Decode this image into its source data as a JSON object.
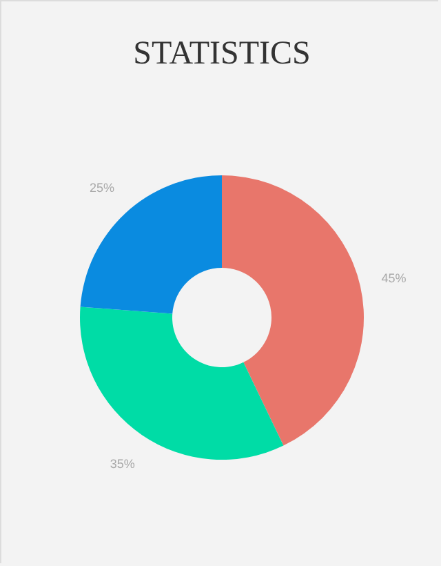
{
  "chart_data": {
    "type": "donut",
    "title": "STATISTICS",
    "categories": [
      null,
      null,
      null
    ],
    "values": [
      45,
      35,
      25
    ],
    "value_labels": [
      "45%",
      "35%",
      "25%"
    ],
    "colors": [
      "#e8766b",
      "#00dca6",
      "#0a8be0"
    ],
    "legend": false
  }
}
